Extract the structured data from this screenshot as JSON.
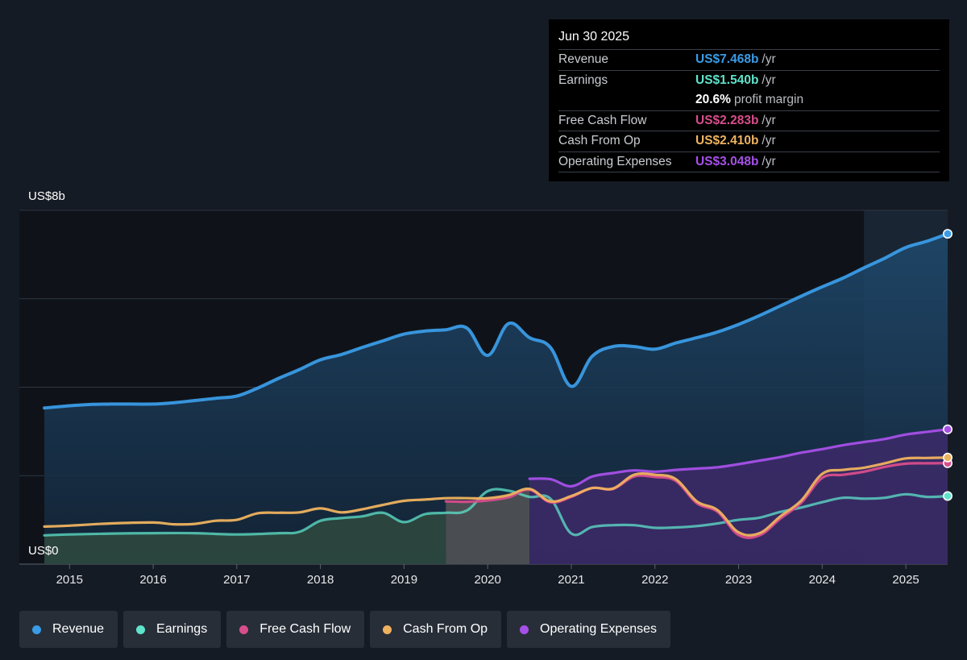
{
  "chart_data": {
    "type": "line",
    "y_axis": {
      "top_label": "US$8b",
      "bottom_label": "US$0",
      "ylim": [
        0,
        8
      ]
    },
    "x_axis": {
      "tick_labels": [
        "2015",
        "2016",
        "2017",
        "2018",
        "2019",
        "2020",
        "2021",
        "2022",
        "2023",
        "2024",
        "2025"
      ],
      "xlim": [
        2014.4,
        2025.5
      ]
    },
    "grid": true,
    "series": [
      {
        "name": "Revenue",
        "color": "#3a9be6",
        "points": [
          [
            2014.7,
            3.53
          ],
          [
            2015.0,
            3.58
          ],
          [
            2015.25,
            3.61
          ],
          [
            2015.5,
            3.62
          ],
          [
            2015.75,
            3.62
          ],
          [
            2016.0,
            3.62
          ],
          [
            2016.25,
            3.65
          ],
          [
            2016.5,
            3.7
          ],
          [
            2016.75,
            3.75
          ],
          [
            2017.0,
            3.8
          ],
          [
            2017.25,
            3.98
          ],
          [
            2017.5,
            4.2
          ],
          [
            2017.75,
            4.4
          ],
          [
            2018.0,
            4.62
          ],
          [
            2018.25,
            4.74
          ],
          [
            2018.5,
            4.9
          ],
          [
            2018.75,
            5.05
          ],
          [
            2019.0,
            5.2
          ],
          [
            2019.25,
            5.27
          ],
          [
            2019.5,
            5.3
          ],
          [
            2019.75,
            5.34
          ],
          [
            2020.0,
            4.72
          ],
          [
            2020.25,
            5.44
          ],
          [
            2020.5,
            5.12
          ],
          [
            2020.75,
            4.9
          ],
          [
            2021.0,
            4.02
          ],
          [
            2021.25,
            4.7
          ],
          [
            2021.5,
            4.92
          ],
          [
            2021.75,
            4.92
          ],
          [
            2022.0,
            4.86
          ],
          [
            2022.25,
            5.0
          ],
          [
            2022.5,
            5.12
          ],
          [
            2022.75,
            5.25
          ],
          [
            2023.0,
            5.42
          ],
          [
            2023.25,
            5.62
          ],
          [
            2023.5,
            5.84
          ],
          [
            2023.75,
            6.06
          ],
          [
            2024.0,
            6.27
          ],
          [
            2024.25,
            6.47
          ],
          [
            2024.5,
            6.7
          ],
          [
            2024.75,
            6.92
          ],
          [
            2025.0,
            7.16
          ],
          [
            2025.25,
            7.3
          ],
          [
            2025.5,
            7.47
          ]
        ]
      },
      {
        "name": "Earnings",
        "color": "#5fe3cb",
        "points": [
          [
            2014.7,
            0.65
          ],
          [
            2015.0,
            0.67
          ],
          [
            2015.5,
            0.69
          ],
          [
            2016.0,
            0.7
          ],
          [
            2016.5,
            0.7
          ],
          [
            2017.0,
            0.67
          ],
          [
            2017.5,
            0.7
          ],
          [
            2017.75,
            0.73
          ],
          [
            2018.0,
            0.98
          ],
          [
            2018.25,
            1.04
          ],
          [
            2018.5,
            1.08
          ],
          [
            2018.75,
            1.16
          ],
          [
            2019.0,
            0.95
          ],
          [
            2019.25,
            1.13
          ],
          [
            2019.5,
            1.16
          ],
          [
            2019.75,
            1.21
          ],
          [
            2020.0,
            1.65
          ],
          [
            2020.25,
            1.66
          ],
          [
            2020.5,
            1.52
          ],
          [
            2020.75,
            1.48
          ],
          [
            2021.0,
            0.69
          ],
          [
            2021.25,
            0.84
          ],
          [
            2021.5,
            0.88
          ],
          [
            2021.75,
            0.88
          ],
          [
            2022.0,
            0.82
          ],
          [
            2022.25,
            0.83
          ],
          [
            2022.5,
            0.86
          ],
          [
            2022.75,
            0.92
          ],
          [
            2023.0,
            1.0
          ],
          [
            2023.25,
            1.05
          ],
          [
            2023.5,
            1.18
          ],
          [
            2023.75,
            1.28
          ],
          [
            2024.0,
            1.4
          ],
          [
            2024.25,
            1.5
          ],
          [
            2024.5,
            1.48
          ],
          [
            2024.75,
            1.5
          ],
          [
            2025.0,
            1.58
          ],
          [
            2025.25,
            1.52
          ],
          [
            2025.5,
            1.54
          ]
        ]
      },
      {
        "name": "Free Cash Flow",
        "color": "#d84d8b",
        "points": [
          [
            2019.5,
            1.42
          ],
          [
            2019.75,
            1.41
          ],
          [
            2020.0,
            1.44
          ],
          [
            2020.25,
            1.51
          ],
          [
            2020.5,
            1.68
          ],
          [
            2020.75,
            1.4
          ],
          [
            2021.0,
            1.52
          ],
          [
            2021.25,
            1.72
          ],
          [
            2021.5,
            1.7
          ],
          [
            2021.75,
            1.98
          ],
          [
            2022.0,
            1.97
          ],
          [
            2022.25,
            1.88
          ],
          [
            2022.5,
            1.38
          ],
          [
            2022.75,
            1.18
          ],
          [
            2023.0,
            0.66
          ],
          [
            2023.25,
            0.65
          ],
          [
            2023.5,
            1.03
          ],
          [
            2023.75,
            1.39
          ],
          [
            2024.0,
            1.95
          ],
          [
            2024.25,
            2.02
          ],
          [
            2024.5,
            2.09
          ],
          [
            2024.75,
            2.2
          ],
          [
            2025.0,
            2.27
          ],
          [
            2025.25,
            2.28
          ],
          [
            2025.5,
            2.283
          ]
        ]
      },
      {
        "name": "Cash From Op",
        "color": "#eeb25f",
        "points": [
          [
            2014.7,
            0.85
          ],
          [
            2015.0,
            0.87
          ],
          [
            2015.5,
            0.92
          ],
          [
            2016.0,
            0.94
          ],
          [
            2016.25,
            0.9
          ],
          [
            2016.5,
            0.91
          ],
          [
            2016.75,
            0.98
          ],
          [
            2017.0,
            1.0
          ],
          [
            2017.25,
            1.15
          ],
          [
            2017.5,
            1.16
          ],
          [
            2017.75,
            1.17
          ],
          [
            2018.0,
            1.26
          ],
          [
            2018.25,
            1.17
          ],
          [
            2018.5,
            1.24
          ],
          [
            2018.75,
            1.34
          ],
          [
            2019.0,
            1.43
          ],
          [
            2019.25,
            1.46
          ],
          [
            2019.5,
            1.49
          ],
          [
            2019.75,
            1.49
          ],
          [
            2020.0,
            1.49
          ],
          [
            2020.25,
            1.56
          ],
          [
            2020.5,
            1.7
          ],
          [
            2020.75,
            1.42
          ],
          [
            2021.0,
            1.54
          ],
          [
            2021.25,
            1.72
          ],
          [
            2021.5,
            1.71
          ],
          [
            2021.75,
            2.02
          ],
          [
            2022.0,
            2.02
          ],
          [
            2022.25,
            1.92
          ],
          [
            2022.5,
            1.42
          ],
          [
            2022.75,
            1.22
          ],
          [
            2023.0,
            0.72
          ],
          [
            2023.25,
            0.7
          ],
          [
            2023.5,
            1.08
          ],
          [
            2023.75,
            1.44
          ],
          [
            2024.0,
            2.04
          ],
          [
            2024.25,
            2.13
          ],
          [
            2024.5,
            2.18
          ],
          [
            2024.75,
            2.28
          ],
          [
            2025.0,
            2.39
          ],
          [
            2025.25,
            2.4
          ],
          [
            2025.5,
            2.41
          ]
        ]
      },
      {
        "name": "Operating Expenses",
        "color": "#a650e8",
        "points": [
          [
            2020.5,
            1.93
          ],
          [
            2020.75,
            1.92
          ],
          [
            2021.0,
            1.76
          ],
          [
            2021.25,
            1.98
          ],
          [
            2021.5,
            2.06
          ],
          [
            2021.75,
            2.12
          ],
          [
            2022.0,
            2.09
          ],
          [
            2022.25,
            2.13
          ],
          [
            2022.5,
            2.16
          ],
          [
            2022.75,
            2.19
          ],
          [
            2023.0,
            2.26
          ],
          [
            2023.25,
            2.34
          ],
          [
            2023.5,
            2.42
          ],
          [
            2023.75,
            2.52
          ],
          [
            2024.0,
            2.6
          ],
          [
            2024.25,
            2.69
          ],
          [
            2024.5,
            2.76
          ],
          [
            2024.75,
            2.83
          ],
          [
            2025.0,
            2.93
          ],
          [
            2025.25,
            2.99
          ],
          [
            2025.5,
            3.048
          ]
        ]
      }
    ],
    "shaded_regions": [
      {
        "series": "Earnings",
        "x_range": [
          2014.7,
          2019.5
        ]
      },
      {
        "series": "Free Cash Flow",
        "x_range": [
          2019.5,
          2020.5
        ]
      },
      {
        "series": "Operating Expenses",
        "x_range": [
          2020.5,
          2025.5
        ]
      }
    ],
    "highlight_range": [
      2024.5,
      2025.5
    ]
  },
  "tooltip": {
    "date": "Jun 30 2025",
    "rows": [
      {
        "label": "Revenue",
        "value": "US$7.468b",
        "unit": "/yr",
        "color": "#3a9be6"
      },
      {
        "label": "Earnings",
        "value": "US$1.540b",
        "unit": "/yr",
        "color": "#5fe3cb"
      },
      {
        "label": "",
        "value": "20.6%",
        "unit": "profit margin",
        "color": "#ffffff"
      },
      {
        "label": "Free Cash Flow",
        "value": "US$2.283b",
        "unit": "/yr",
        "color": "#d84d8b"
      },
      {
        "label": "Cash From Op",
        "value": "US$2.410b",
        "unit": "/yr",
        "color": "#eeb25f"
      },
      {
        "label": "Operating Expenses",
        "value": "US$3.048b",
        "unit": "/yr",
        "color": "#a650e8"
      }
    ]
  },
  "legend": [
    {
      "label": "Revenue",
      "color": "#3a9be6"
    },
    {
      "label": "Earnings",
      "color": "#5fe3cb"
    },
    {
      "label": "Free Cash Flow",
      "color": "#d84d8b"
    },
    {
      "label": "Cash From Op",
      "color": "#eeb25f"
    },
    {
      "label": "Operating Expenses",
      "color": "#a650e8"
    }
  ]
}
